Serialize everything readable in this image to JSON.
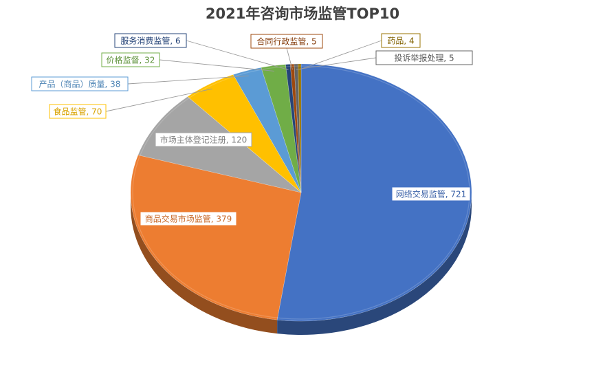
{
  "chart_data": {
    "type": "pie",
    "title": "2021年咨询市场监管TOP10",
    "slices": [
      {
        "label": "网络交易监管",
        "value": 721,
        "color": "#4472C4"
      },
      {
        "label": "商品交易市场监管",
        "value": 379,
        "color": "#ED7D31"
      },
      {
        "label": "市场主体登记注册",
        "value": 120,
        "color": "#A5A5A5"
      },
      {
        "label": "食品监管",
        "value": 70,
        "color": "#FFC000"
      },
      {
        "label": "产品（商品）质量",
        "value": 38,
        "color": "#5B9BD5"
      },
      {
        "label": "价格监督",
        "value": 32,
        "color": "#70AD47"
      },
      {
        "label": "服务消费监管",
        "value": 6,
        "color": "#264478"
      },
      {
        "label": "合同行政监管",
        "value": 5,
        "color": "#9E480E"
      },
      {
        "label": "投诉举报处理",
        "value": 5,
        "color": "#636363"
      },
      {
        "label": "药品",
        "value": 4,
        "color": "#997300"
      }
    ],
    "legend": "none",
    "data_labels": "category-name-and-value"
  }
}
